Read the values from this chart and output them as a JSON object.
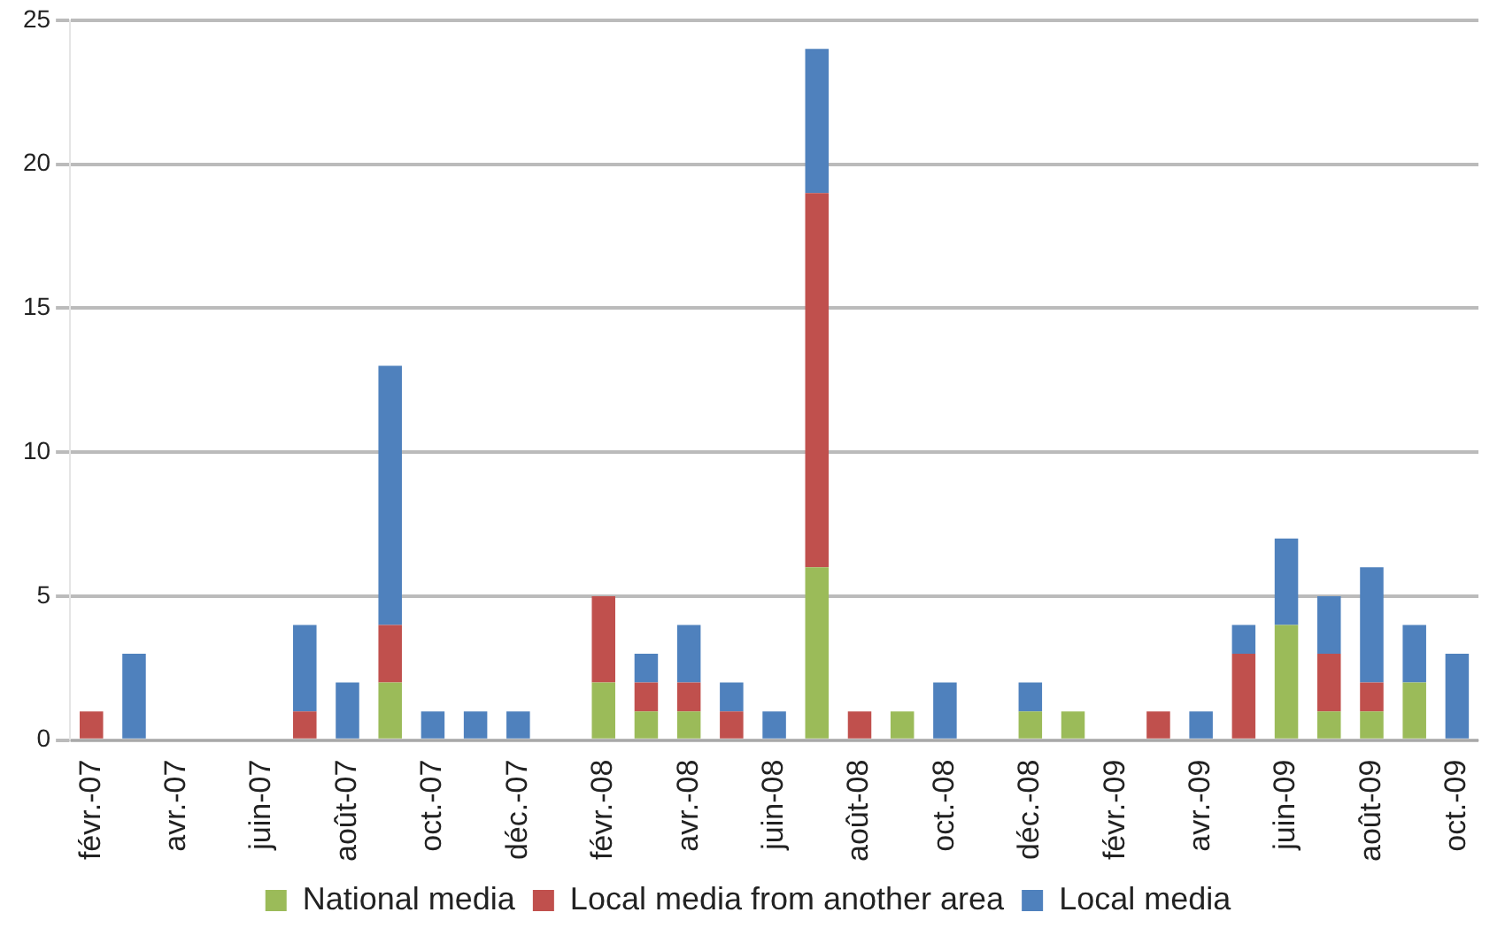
{
  "chart_data": {
    "type": "bar",
    "stacked": true,
    "grid": "y",
    "legend": "bottom",
    "categories": [
      "févr.-07",
      null,
      "avr.-07",
      null,
      "juin-07",
      null,
      "août-07",
      null,
      "oct.-07",
      null,
      "déc.-07",
      null,
      "févr.-08",
      null,
      "avr.-08",
      null,
      "juin-08",
      null,
      "août-08",
      null,
      "oct.-08",
      null,
      "déc.-08",
      null,
      "févr.-09",
      null,
      "avr.-09",
      null,
      "juin-09",
      null,
      "août-09",
      null,
      "oct.-09"
    ],
    "ylim": [
      0,
      25
    ],
    "yticks": [
      0,
      5,
      10,
      15,
      20,
      25
    ],
    "series": [
      {
        "name": "National media",
        "color": "#9bbb59",
        "values": [
          0,
          0,
          0,
          0,
          0,
          0,
          0,
          2,
          0,
          0,
          0,
          0,
          2,
          1,
          1,
          0,
          0,
          6,
          0,
          1,
          0,
          0,
          1,
          1,
          0,
          0,
          0,
          0,
          4,
          1,
          1,
          2,
          0
        ]
      },
      {
        "name": "Local media from another area",
        "color": "#c0504d",
        "values": [
          1,
          0,
          0,
          0,
          0,
          1,
          0,
          2,
          0,
          0,
          0,
          0,
          3,
          1,
          1,
          1,
          0,
          13,
          1,
          0,
          0,
          0,
          0,
          0,
          0,
          1,
          0,
          3,
          0,
          2,
          1,
          0,
          0
        ]
      },
      {
        "name": "Local media",
        "color": "#4f81bd",
        "values": [
          0,
          3,
          0,
          0,
          0,
          3,
          2,
          9,
          1,
          1,
          1,
          0,
          0,
          1,
          2,
          1,
          1,
          5,
          0,
          0,
          2,
          0,
          1,
          0,
          0,
          0,
          1,
          1,
          3,
          2,
          4,
          2,
          3
        ]
      }
    ]
  }
}
